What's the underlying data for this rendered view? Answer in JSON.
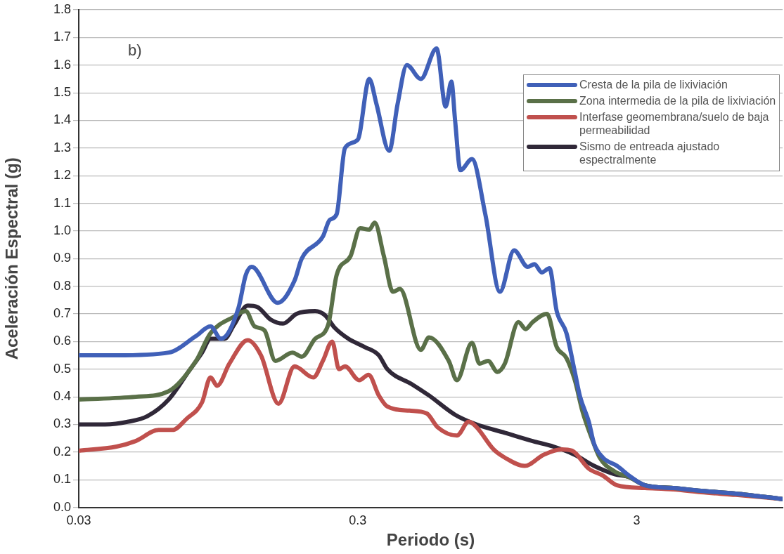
{
  "chart_data": {
    "type": "line",
    "xlabel": "Periodo (s)",
    "ylabel": "Aceleración Espectral (g)",
    "annotations": [
      "b)"
    ],
    "log": "x",
    "grid": "y",
    "legend": "top right",
    "marker": "none",
    "line_style": "solid",
    "xlim": [
      0.03,
      10
    ],
    "xticks": [
      0.03,
      0.3,
      3
    ],
    "ylim": [
      0,
      1.8
    ],
    "yticks": [
      {
        "value": 0,
        "label": "0.0"
      },
      0.1,
      0.2,
      0.3,
      0.4,
      0.5,
      0.6,
      0.7,
      0.8,
      0.9,
      {
        "value": 1,
        "label": "1.0"
      },
      1.1,
      1.2,
      1.3,
      1.4,
      1.5,
      1.6,
      1.7,
      1.8
    ],
    "series": [
      {
        "name": "Cresta de la pila de lixiviación",
        "color": "#4060b8",
        "x": [
          0.03,
          0.041,
          0.063,
          0.079,
          0.089,
          0.097,
          0.112,
          0.119,
          0.125,
          0.155,
          0.178,
          0.189,
          0.225,
          0.238,
          0.252,
          0.27,
          0.3,
          0.33,
          0.35,
          0.389,
          0.417,
          0.45,
          0.505,
          0.575,
          0.62,
          0.65,
          0.67,
          0.7,
          0.77,
          0.86,
          0.97,
          1.09,
          1.22,
          1.29,
          1.37,
          1.46,
          1.55,
          1.68,
          1.8,
          1.88,
          2.02,
          2.11,
          2.27,
          2.55,
          2.86,
          3.21,
          4.05,
          5.1,
          6.8,
          10
        ],
        "values": [
          0.55,
          0.55,
          0.56,
          0.62,
          0.655,
          0.61,
          0.72,
          0.84,
          0.87,
          0.74,
          0.82,
          0.9,
          0.98,
          1.04,
          1.06,
          1.3,
          1.33,
          1.55,
          1.46,
          1.29,
          1.46,
          1.6,
          1.55,
          1.66,
          1.45,
          1.54,
          1.4,
          1.22,
          1.26,
          1.06,
          0.78,
          0.93,
          0.87,
          0.88,
          0.85,
          0.865,
          0.71,
          0.63,
          0.49,
          0.4,
          0.31,
          0.23,
          0.18,
          0.15,
          0.11,
          0.08,
          0.07,
          0.06,
          0.05,
          0.03
        ]
      },
      {
        "name": "Zona intermedia de la pila de lixiviación",
        "color": "#5a7048",
        "x": [
          0.03,
          0.048,
          0.063,
          0.079,
          0.089,
          0.108,
          0.119,
          0.128,
          0.139,
          0.152,
          0.175,
          0.189,
          0.211,
          0.235,
          0.252,
          0.283,
          0.306,
          0.33,
          0.345,
          0.372,
          0.401,
          0.425,
          0.505,
          0.54,
          0.636,
          0.68,
          0.77,
          0.82,
          0.88,
          0.95,
          1.01,
          1.13,
          1.2,
          1.27,
          1.43,
          1.55,
          1.68,
          1.8,
          1.92,
          2.07,
          2.21,
          2.5,
          2.81,
          3.21,
          4.05,
          5.1,
          6.8,
          10
        ],
        "values": [
          0.39,
          0.4,
          0.42,
          0.53,
          0.63,
          0.69,
          0.71,
          0.655,
          0.64,
          0.53,
          0.56,
          0.545,
          0.61,
          0.66,
          0.84,
          0.91,
          1.01,
          1.005,
          1.03,
          0.91,
          0.78,
          0.79,
          0.57,
          0.615,
          0.53,
          0.46,
          0.595,
          0.52,
          0.53,
          0.49,
          0.52,
          0.67,
          0.645,
          0.67,
          0.7,
          0.58,
          0.54,
          0.46,
          0.345,
          0.25,
          0.18,
          0.13,
          0.11,
          0.08,
          0.07,
          0.06,
          0.05,
          0.03
        ]
      },
      {
        "name": "Interfase geomembrana/suelo de baja permeabilidad",
        "color": "#c0504d",
        "x": [
          0.03,
          0.041,
          0.048,
          0.058,
          0.065,
          0.073,
          0.083,
          0.089,
          0.094,
          0.104,
          0.121,
          0.135,
          0.156,
          0.178,
          0.208,
          0.225,
          0.243,
          0.257,
          0.27,
          0.304,
          0.328,
          0.357,
          0.383,
          0.46,
          0.53,
          0.58,
          0.68,
          0.75,
          0.8,
          0.92,
          1.01,
          1.19,
          1.39,
          1.61,
          1.76,
          2.02,
          2.27,
          2.55,
          3.21,
          4.05,
          5.1,
          6.8,
          10
        ],
        "values": [
          0.205,
          0.22,
          0.24,
          0.28,
          0.28,
          0.32,
          0.38,
          0.47,
          0.44,
          0.52,
          0.605,
          0.55,
          0.375,
          0.51,
          0.47,
          0.53,
          0.6,
          0.5,
          0.51,
          0.46,
          0.48,
          0.405,
          0.365,
          0.35,
          0.34,
          0.29,
          0.26,
          0.31,
          0.29,
          0.21,
          0.18,
          0.15,
          0.19,
          0.21,
          0.205,
          0.14,
          0.115,
          0.08,
          0.07,
          0.065,
          0.055,
          0.045,
          0.03
        ]
      },
      {
        "name": "Sismo de entreada ajustado espectralmente",
        "color": "#302838",
        "x": [
          0.03,
          0.0373,
          0.0452,
          0.0529,
          0.063,
          0.0735,
          0.083,
          0.089,
          0.1,
          0.108,
          0.121,
          0.131,
          0.146,
          0.162,
          0.181,
          0.211,
          0.229,
          0.248,
          0.278,
          0.318,
          0.357,
          0.383,
          0.47,
          0.54,
          0.67,
          0.8,
          1.01,
          1.27,
          1.51,
          1.8,
          2.11,
          2.5,
          2.81,
          3.21,
          4.05,
          5.1,
          6.8,
          10
        ],
        "values": [
          0.3,
          0.3,
          0.31,
          0.33,
          0.39,
          0.485,
          0.56,
          0.61,
          0.61,
          0.66,
          0.73,
          0.725,
          0.68,
          0.665,
          0.7,
          0.71,
          0.695,
          0.65,
          0.61,
          0.58,
          0.55,
          0.5,
          0.445,
          0.405,
          0.335,
          0.3,
          0.27,
          0.24,
          0.22,
          0.19,
          0.15,
          0.12,
          0.11,
          0.08,
          0.07,
          0.06,
          0.05,
          0.03
        ]
      }
    ]
  }
}
